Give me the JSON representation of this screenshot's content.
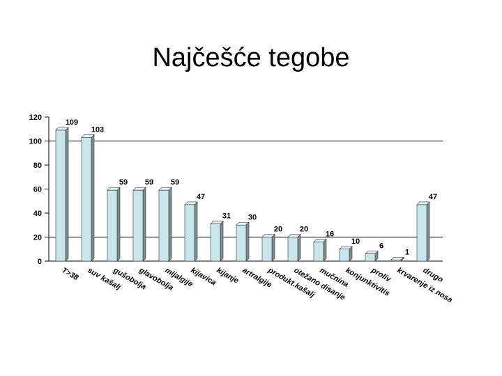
{
  "slide": {
    "title": "Najčešće tegobe"
  },
  "colors": {
    "bar_front": "#c8e6ec",
    "bar_side": "#7a8f94",
    "bar_top": "#e6f4f7",
    "axis": "#000000"
  },
  "chart_data": {
    "type": "bar",
    "categories": [
      "T>38",
      "suv kašalj",
      "gušobolja",
      "glavobolja",
      "mijalgije",
      "kijavica",
      "kijanje",
      "artralgije",
      "produkt.kašalj",
      "otežano disanje",
      "mučnina",
      "konjunktivitis",
      "proliv",
      "krvarenje iz nosa",
      "drugo"
    ],
    "values": [
      109,
      103,
      59,
      59,
      59,
      47,
      31,
      30,
      20,
      20,
      16,
      10,
      6,
      1,
      47
    ],
    "data_labels": [
      "109",
      "103",
      "59",
      "59",
      "59",
      "47",
      "31",
      "30",
      "20",
      "20",
      "16",
      "10",
      "6",
      "1",
      "47"
    ],
    "ylim": [
      0,
      120
    ],
    "yticks": [
      0,
      20,
      40,
      60,
      80,
      100,
      120
    ],
    "ytick_labels": [
      "0",
      "20",
      "40",
      "60",
      "80",
      "100",
      "120"
    ],
    "grid": "horizontal lines at 20 and 100",
    "gridlines": [
      20,
      100
    ],
    "xlabel": "",
    "ylabel": ""
  }
}
